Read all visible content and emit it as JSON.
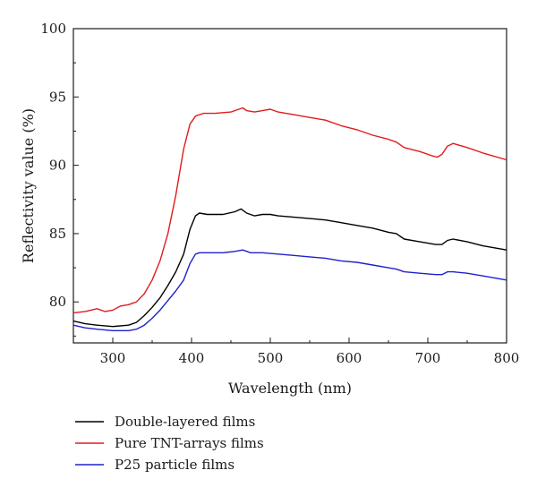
{
  "chart_data": {
    "type": "line",
    "xlabel": "Wavelength (nm)",
    "ylabel": "Reflectivity value (%)",
    "xlim": [
      250,
      800
    ],
    "ylim": [
      77,
      100
    ],
    "xticks": [
      300,
      400,
      500,
      600,
      700,
      800
    ],
    "yticks": [
      80,
      85,
      90,
      95,
      100
    ],
    "grid": false,
    "legend_position": "bottom-left, below plot",
    "series": [
      {
        "name": "Double-layered films",
        "color": "#000000",
        "points": [
          [
            250,
            78.6
          ],
          [
            265,
            78.4
          ],
          [
            280,
            78.3
          ],
          [
            300,
            78.2
          ],
          [
            320,
            78.3
          ],
          [
            330,
            78.5
          ],
          [
            340,
            79.0
          ],
          [
            350,
            79.6
          ],
          [
            360,
            80.3
          ],
          [
            370,
            81.2
          ],
          [
            380,
            82.2
          ],
          [
            390,
            83.5
          ],
          [
            398,
            85.3
          ],
          [
            405,
            86.3
          ],
          [
            410,
            86.5
          ],
          [
            420,
            86.4
          ],
          [
            440,
            86.4
          ],
          [
            455,
            86.6
          ],
          [
            463,
            86.8
          ],
          [
            470,
            86.5
          ],
          [
            480,
            86.3
          ],
          [
            490,
            86.4
          ],
          [
            500,
            86.4
          ],
          [
            510,
            86.3
          ],
          [
            530,
            86.2
          ],
          [
            550,
            86.1
          ],
          [
            570,
            86.0
          ],
          [
            590,
            85.8
          ],
          [
            610,
            85.6
          ],
          [
            630,
            85.4
          ],
          [
            650,
            85.1
          ],
          [
            660,
            85.0
          ],
          [
            670,
            84.6
          ],
          [
            690,
            84.4
          ],
          [
            710,
            84.2
          ],
          [
            718,
            84.2
          ],
          [
            725,
            84.5
          ],
          [
            732,
            84.6
          ],
          [
            750,
            84.4
          ],
          [
            770,
            84.1
          ],
          [
            800,
            83.8
          ]
        ]
      },
      {
        "name": "Pure TNT-arrays films",
        "color": "#e31a1c",
        "points": [
          [
            250,
            79.2
          ],
          [
            265,
            79.3
          ],
          [
            280,
            79.5
          ],
          [
            290,
            79.3
          ],
          [
            300,
            79.4
          ],
          [
            310,
            79.7
          ],
          [
            320,
            79.8
          ],
          [
            330,
            80.0
          ],
          [
            340,
            80.6
          ],
          [
            350,
            81.6
          ],
          [
            360,
            83.0
          ],
          [
            370,
            85.0
          ],
          [
            380,
            87.8
          ],
          [
            390,
            91.2
          ],
          [
            398,
            93.0
          ],
          [
            405,
            93.6
          ],
          [
            415,
            93.8
          ],
          [
            430,
            93.8
          ],
          [
            450,
            93.9
          ],
          [
            465,
            94.2
          ],
          [
            470,
            94.0
          ],
          [
            480,
            93.9
          ],
          [
            490,
            94.0
          ],
          [
            500,
            94.1
          ],
          [
            510,
            93.9
          ],
          [
            530,
            93.7
          ],
          [
            550,
            93.5
          ],
          [
            570,
            93.3
          ],
          [
            590,
            92.9
          ],
          [
            610,
            92.6
          ],
          [
            630,
            92.2
          ],
          [
            650,
            91.9
          ],
          [
            660,
            91.7
          ],
          [
            670,
            91.3
          ],
          [
            690,
            91.0
          ],
          [
            705,
            90.7
          ],
          [
            712,
            90.6
          ],
          [
            718,
            90.8
          ],
          [
            725,
            91.4
          ],
          [
            732,
            91.6
          ],
          [
            750,
            91.3
          ],
          [
            770,
            90.9
          ],
          [
            800,
            90.4
          ]
        ]
      },
      {
        "name": "P25 particle films",
        "color": "#1f22c9",
        "points": [
          [
            250,
            78.3
          ],
          [
            265,
            78.1
          ],
          [
            280,
            78.0
          ],
          [
            300,
            77.9
          ],
          [
            320,
            77.9
          ],
          [
            330,
            78.0
          ],
          [
            340,
            78.3
          ],
          [
            350,
            78.8
          ],
          [
            360,
            79.4
          ],
          [
            370,
            80.1
          ],
          [
            380,
            80.8
          ],
          [
            390,
            81.6
          ],
          [
            398,
            82.8
          ],
          [
            405,
            83.5
          ],
          [
            410,
            83.6
          ],
          [
            420,
            83.6
          ],
          [
            440,
            83.6
          ],
          [
            455,
            83.7
          ],
          [
            465,
            83.8
          ],
          [
            475,
            83.6
          ],
          [
            490,
            83.6
          ],
          [
            510,
            83.5
          ],
          [
            530,
            83.4
          ],
          [
            550,
            83.3
          ],
          [
            570,
            83.2
          ],
          [
            590,
            83.0
          ],
          [
            610,
            82.9
          ],
          [
            630,
            82.7
          ],
          [
            650,
            82.5
          ],
          [
            660,
            82.4
          ],
          [
            670,
            82.2
          ],
          [
            690,
            82.1
          ],
          [
            710,
            82.0
          ],
          [
            718,
            82.0
          ],
          [
            725,
            82.2
          ],
          [
            732,
            82.2
          ],
          [
            750,
            82.1
          ],
          [
            770,
            81.9
          ],
          [
            800,
            81.6
          ]
        ]
      }
    ]
  }
}
